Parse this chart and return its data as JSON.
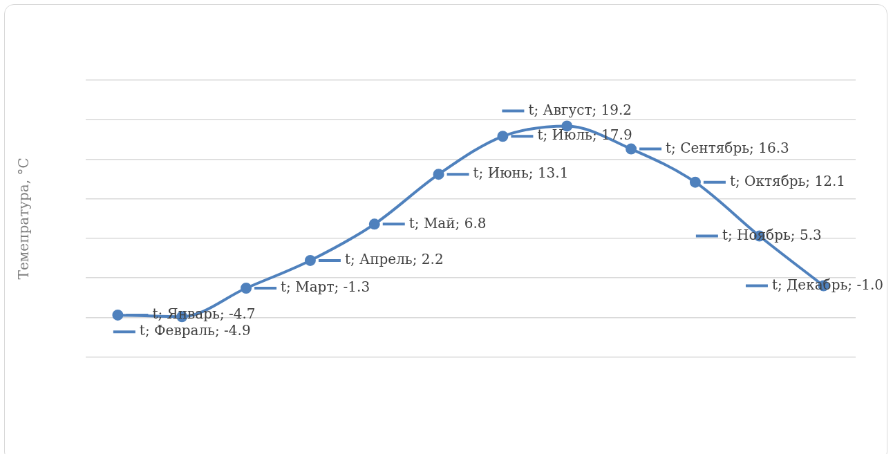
{
  "chart_data": {
    "type": "line",
    "ylabel": "Темепратура, °С",
    "categories": [
      null,
      null,
      null,
      null,
      null,
      null,
      null,
      null,
      null,
      null,
      null,
      null
    ],
    "series": [
      {
        "color": "#4f81bd",
        "values": [
          -4.7,
          -4.9,
          -1.3,
          2.2,
          6.8,
          13.1,
          17.9,
          19.2,
          16.3,
          12.1,
          5.3,
          -1.0
        ],
        "value_labels": [
          "t; Январь; -4.7",
          "t; Февраль; -4.9",
          "t; Март; -1.3",
          "t; Апрель; 2.2",
          "t; Май; 6.8",
          "t; Июнь; 13.1",
          "t; Июль; 17.9",
          "t; Август; 19.2",
          "t; Сентябрь; 16.3",
          "t; Октябрь; 12.1",
          "t; Ноябрь; 5.3",
          "t; Декабрь; -1.0"
        ]
      }
    ],
    "ylim": [
      -10,
      25
    ],
    "yticks": [
      {
        "value": -10,
        "label": null
      },
      {
        "value": -5,
        "label": null
      },
      {
        "value": 0,
        "label": null
      },
      {
        "value": 5,
        "label": null
      },
      {
        "value": 10,
        "label": null
      },
      {
        "value": 15,
        "label": null
      },
      {
        "value": 20,
        "label": null
      },
      {
        "value": 25,
        "label": null
      }
    ],
    "grid": "y",
    "legend": false,
    "marker": "circle",
    "line_style": "solid"
  }
}
